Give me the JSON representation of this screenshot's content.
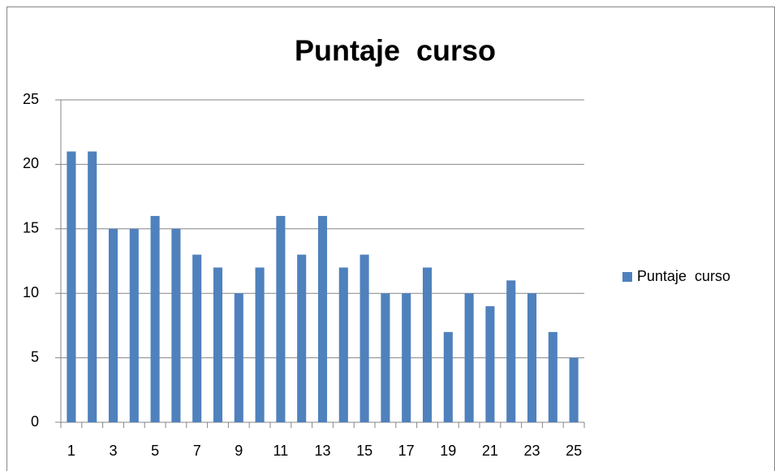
{
  "chart_data": {
    "type": "bar",
    "title": "Puntaje  curso",
    "categories": [
      "1",
      null,
      "3",
      null,
      "5",
      null,
      "7",
      null,
      "9",
      null,
      "11",
      null,
      "13",
      null,
      "15",
      null,
      "17",
      null,
      "19",
      null,
      "21",
      null,
      "23",
      null,
      "25"
    ],
    "series": [
      {
        "name": "Puntaje  curso",
        "color": "#4f81bd",
        "values": [
          21,
          21,
          15,
          15,
          16,
          15,
          13,
          12,
          10,
          12,
          16,
          13,
          16,
          12,
          13,
          10,
          10,
          12,
          7,
          10,
          9,
          11,
          10,
          7,
          5
        ]
      }
    ],
    "ylim": [
      0,
      25
    ],
    "yticks": [
      0,
      5,
      10,
      15,
      20,
      25
    ],
    "grid": true,
    "legend": "right"
  }
}
